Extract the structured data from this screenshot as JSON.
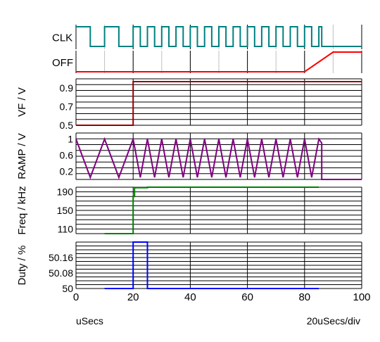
{
  "chart_data": [
    {
      "id": "clk",
      "type": "line",
      "label": "CLK",
      "color": "#008080",
      "digital": true,
      "x": [
        0,
        5,
        5,
        10,
        10,
        15,
        15,
        20,
        20,
        22.5,
        22.5,
        25,
        25,
        27.5,
        27.5,
        30,
        30,
        32.5,
        32.5,
        35,
        35,
        37.5,
        37.5,
        40,
        40,
        42.5,
        42.5,
        45,
        45,
        47.5,
        47.5,
        50,
        50,
        52.5,
        52.5,
        55,
        55,
        57.5,
        57.5,
        60,
        60,
        62.5,
        62.5,
        65,
        65,
        67.5,
        67.5,
        70,
        70,
        72.5,
        72.5,
        75,
        75,
        77.5,
        77.5,
        80,
        80,
        82.5,
        82.5,
        85,
        85,
        86,
        86,
        100
      ],
      "y": [
        1,
        1,
        0,
        0,
        1,
        1,
        0,
        0,
        1,
        1,
        0,
        0,
        1,
        1,
        0,
        0,
        1,
        1,
        0,
        0,
        1,
        1,
        0,
        0,
        1,
        1,
        0,
        0,
        1,
        1,
        0,
        0,
        1,
        1,
        0,
        0,
        1,
        1,
        0,
        0,
        1,
        1,
        0,
        0,
        1,
        1,
        0,
        0,
        1,
        1,
        0,
        0,
        1,
        1,
        0,
        0,
        1,
        1,
        0,
        0,
        1,
        1,
        0,
        0
      ]
    },
    {
      "id": "off",
      "type": "line",
      "label": "OFF",
      "color": "#ff0000",
      "digital": true,
      "x": [
        0,
        80,
        90,
        100
      ],
      "y": [
        0,
        0,
        1,
        1
      ]
    },
    {
      "id": "vf",
      "type": "line",
      "ylabel": "VF / V",
      "color": "#990000",
      "yticks": [
        "0.9",
        "0.7",
        "0.5"
      ],
      "ytick_values": [
        0.9,
        0.7,
        0.5
      ],
      "ylim": [
        0.5,
        1.0
      ],
      "x": [
        0,
        20,
        20,
        100
      ],
      "y": [
        0.5,
        0.5,
        0.97,
        0.97
      ]
    },
    {
      "id": "ramp",
      "type": "line",
      "ylabel": "RAMP / V",
      "color": "#800080",
      "yticks": [
        "1",
        "0.6",
        "0.2"
      ],
      "ytick_values": [
        1,
        0.6,
        0.2
      ],
      "ylim": [
        0,
        1.15
      ],
      "x": [
        0,
        5,
        10,
        15,
        20,
        22.5,
        25,
        27.5,
        30,
        32.5,
        35,
        37.5,
        40,
        42.5,
        45,
        47.5,
        50,
        52.5,
        55,
        57.5,
        60,
        62.5,
        65,
        67.5,
        70,
        72.5,
        75,
        77.5,
        80,
        82.5,
        85,
        86,
        86,
        100
      ],
      "y": [
        1,
        0.05,
        1,
        0.05,
        1,
        0.05,
        1,
        0.05,
        1,
        0.05,
        1,
        0.05,
        1,
        0.05,
        1,
        0.05,
        1,
        0.05,
        1,
        0.05,
        1,
        0.05,
        1,
        0.05,
        1,
        0.05,
        1,
        0.05,
        1,
        0.05,
        1,
        0.9,
        0,
        0
      ]
    },
    {
      "id": "freq",
      "type": "line",
      "ylabel": "Freq / kHz",
      "color": "#008000",
      "yticks": [
        "190",
        "150",
        "110"
      ],
      "ytick_values": [
        190,
        150,
        110
      ],
      "ylim": [
        100,
        200
      ],
      "x": [
        10,
        20,
        20,
        20.5,
        20.5,
        25,
        25,
        85
      ],
      "y": [
        100,
        100,
        180,
        180,
        199,
        199,
        200,
        200
      ]
    },
    {
      "id": "duty",
      "type": "line",
      "ylabel": "Duty / %",
      "color": "#0000ff",
      "yticks": [
        "50.16",
        "50.08",
        "50"
      ],
      "ytick_values": [
        50.16,
        50.08,
        50
      ],
      "ylim": [
        50,
        50.24
      ],
      "x": [
        10,
        20,
        20,
        25,
        25,
        85
      ],
      "y": [
        50,
        50,
        50.24,
        50.24,
        50,
        50
      ]
    }
  ],
  "xaxis": {
    "min": 0,
    "max": 100,
    "ticks": [
      "0",
      "20",
      "40",
      "60",
      "80",
      "100"
    ],
    "tick_values": [
      0,
      20,
      40,
      60,
      80,
      100
    ],
    "unit_label": "uSecs",
    "scale_label": "20uSecs/div"
  }
}
